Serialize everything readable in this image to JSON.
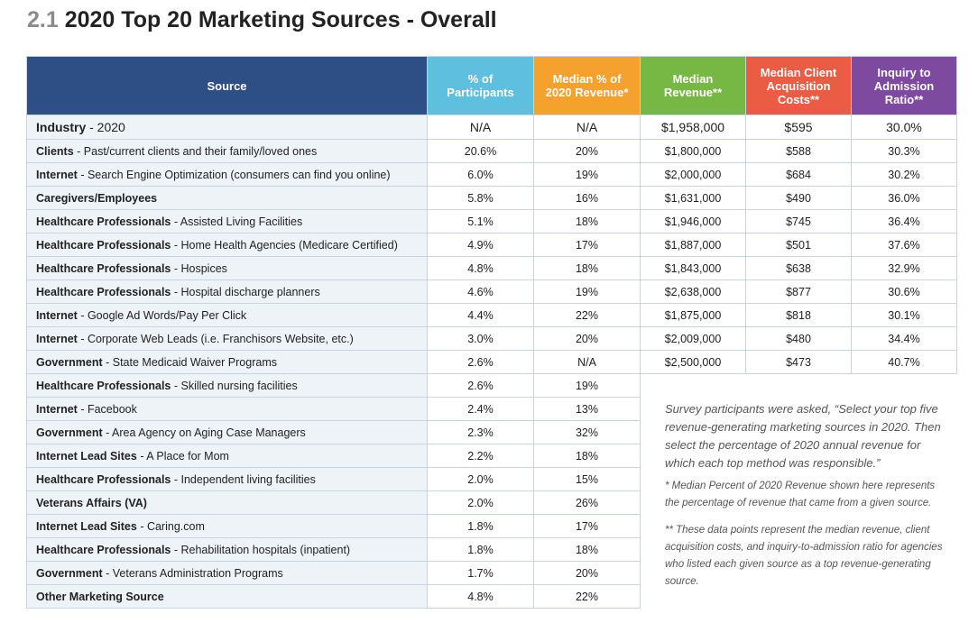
{
  "title": {
    "number": "2.1",
    "text": "2020 Top 20 Marketing Sources - Overall"
  },
  "header": {
    "source": "Source",
    "participants": [
      "% of",
      "Participants"
    ],
    "median_pct": [
      "Median % of",
      "2020 Revenue*"
    ],
    "median_rev": [
      "Median",
      "Revenue**"
    ],
    "cac": [
      "Median Client",
      "Acquisition",
      "Costs**"
    ],
    "ratio": [
      "Inquiry to",
      "Admission",
      "Ratio**"
    ]
  },
  "industry": {
    "label": "Industry",
    "detail": " - 2020",
    "participants": "N/A",
    "median_pct": "N/A",
    "median_rev": "$1,958,000",
    "cac": "$595",
    "ratio": "30.0%"
  },
  "rows": [
    {
      "label": "Clients",
      "detail": " - Past/current clients and their family/loved ones",
      "participants": "20.6%",
      "median_pct": "20%",
      "median_rev": "$1,800,000",
      "cac": "$588",
      "ratio": "30.3%"
    },
    {
      "label": "Internet",
      "detail": " - Search Engine Optimization (consumers can find you online)",
      "participants": "6.0%",
      "median_pct": "19%",
      "median_rev": "$2,000,000",
      "cac": "$684",
      "ratio": "30.2%"
    },
    {
      "label": "Caregivers/Employees",
      "detail": "",
      "participants": "5.8%",
      "median_pct": "16%",
      "median_rev": "$1,631,000",
      "cac": "$490",
      "ratio": "36.0%"
    },
    {
      "label": "Healthcare Professionals",
      "detail": " - Assisted Living Facilities",
      "participants": "5.1%",
      "median_pct": "18%",
      "median_rev": "$1,946,000",
      "cac": "$745",
      "ratio": "36.4%"
    },
    {
      "label": "Healthcare Professionals",
      "detail": " - Home Health Agencies (Medicare Certified)",
      "participants": "4.9%",
      "median_pct": "17%",
      "median_rev": "$1,887,000",
      "cac": "$501",
      "ratio": "37.6%"
    },
    {
      "label": "Healthcare Professionals",
      "detail": " - Hospices",
      "participants": "4.8%",
      "median_pct": "18%",
      "median_rev": "$1,843,000",
      "cac": "$638",
      "ratio": "32.9%"
    },
    {
      "label": "Healthcare Professionals",
      "detail": " - Hospital discharge planners",
      "participants": "4.6%",
      "median_pct": "19%",
      "median_rev": "$2,638,000",
      "cac": "$877",
      "ratio": "30.6%"
    },
    {
      "label": "Internet",
      "detail": " - Google Ad Words/Pay Per Click",
      "participants": "4.4%",
      "median_pct": "22%",
      "median_rev": "$1,875,000",
      "cac": "$818",
      "ratio": "30.1%"
    },
    {
      "label": "Internet",
      "detail": " - Corporate Web Leads (i.e. Franchisors Website, etc.)",
      "participants": "3.0%",
      "median_pct": "20%",
      "median_rev": "$2,009,000",
      "cac": "$480",
      "ratio": "34.4%"
    },
    {
      "label": "Government",
      "detail": " - State Medicaid Waiver Programs",
      "participants": "2.6%",
      "median_pct": "N/A",
      "median_rev": "$2,500,000",
      "cac": "$473",
      "ratio": "40.7%"
    },
    {
      "label": "Healthcare Professionals",
      "detail": " - Skilled nursing facilities",
      "participants": "2.6%",
      "median_pct": "19%"
    },
    {
      "label": "Internet",
      "detail": " - Facebook",
      "participants": "2.4%",
      "median_pct": "13%"
    },
    {
      "label": "Government",
      "detail": " - Area Agency on Aging Case Managers",
      "participants": "2.3%",
      "median_pct": "32%"
    },
    {
      "label": "Internet Lead Sites",
      "detail": " - A Place for Mom",
      "participants": "2.2%",
      "median_pct": "18%"
    },
    {
      "label": "Healthcare Professionals",
      "detail": " - Independent living facilities",
      "participants": "2.0%",
      "median_pct": "15%"
    },
    {
      "label": "Veterans Affairs (VA)",
      "detail": "",
      "participants": "2.0%",
      "median_pct": "26%"
    },
    {
      "label": "Internet Lead Sites",
      "detail": " - Caring.com",
      "participants": "1.8%",
      "median_pct": "17%"
    },
    {
      "label": "Healthcare Professionals",
      "detail": " - Rehabilitation hospitals (inpatient)",
      "participants": "1.8%",
      "median_pct": "18%"
    },
    {
      "label": "Government",
      "detail": " - Veterans Administration Programs",
      "participants": "1.7%",
      "median_pct": "20%"
    },
    {
      "label": "Other Marketing Source",
      "detail": "",
      "participants": "4.8%",
      "median_pct": "22%"
    }
  ],
  "notes": {
    "main": "Survey participants were asked, “Select your top five revenue-generating marketing sources in 2020. Then select the percentage of 2020 annual revenue for which each top method was responsible.”",
    "fn1": "* Median Percent of 2020 Revenue shown here represents the percentage of revenue that came from a given source.",
    "fn2": "** These data points represent the median revenue, client acquisition costs, and inquiry-to-admission ratio for agencies who listed each given source as a top revenue-generating source."
  }
}
